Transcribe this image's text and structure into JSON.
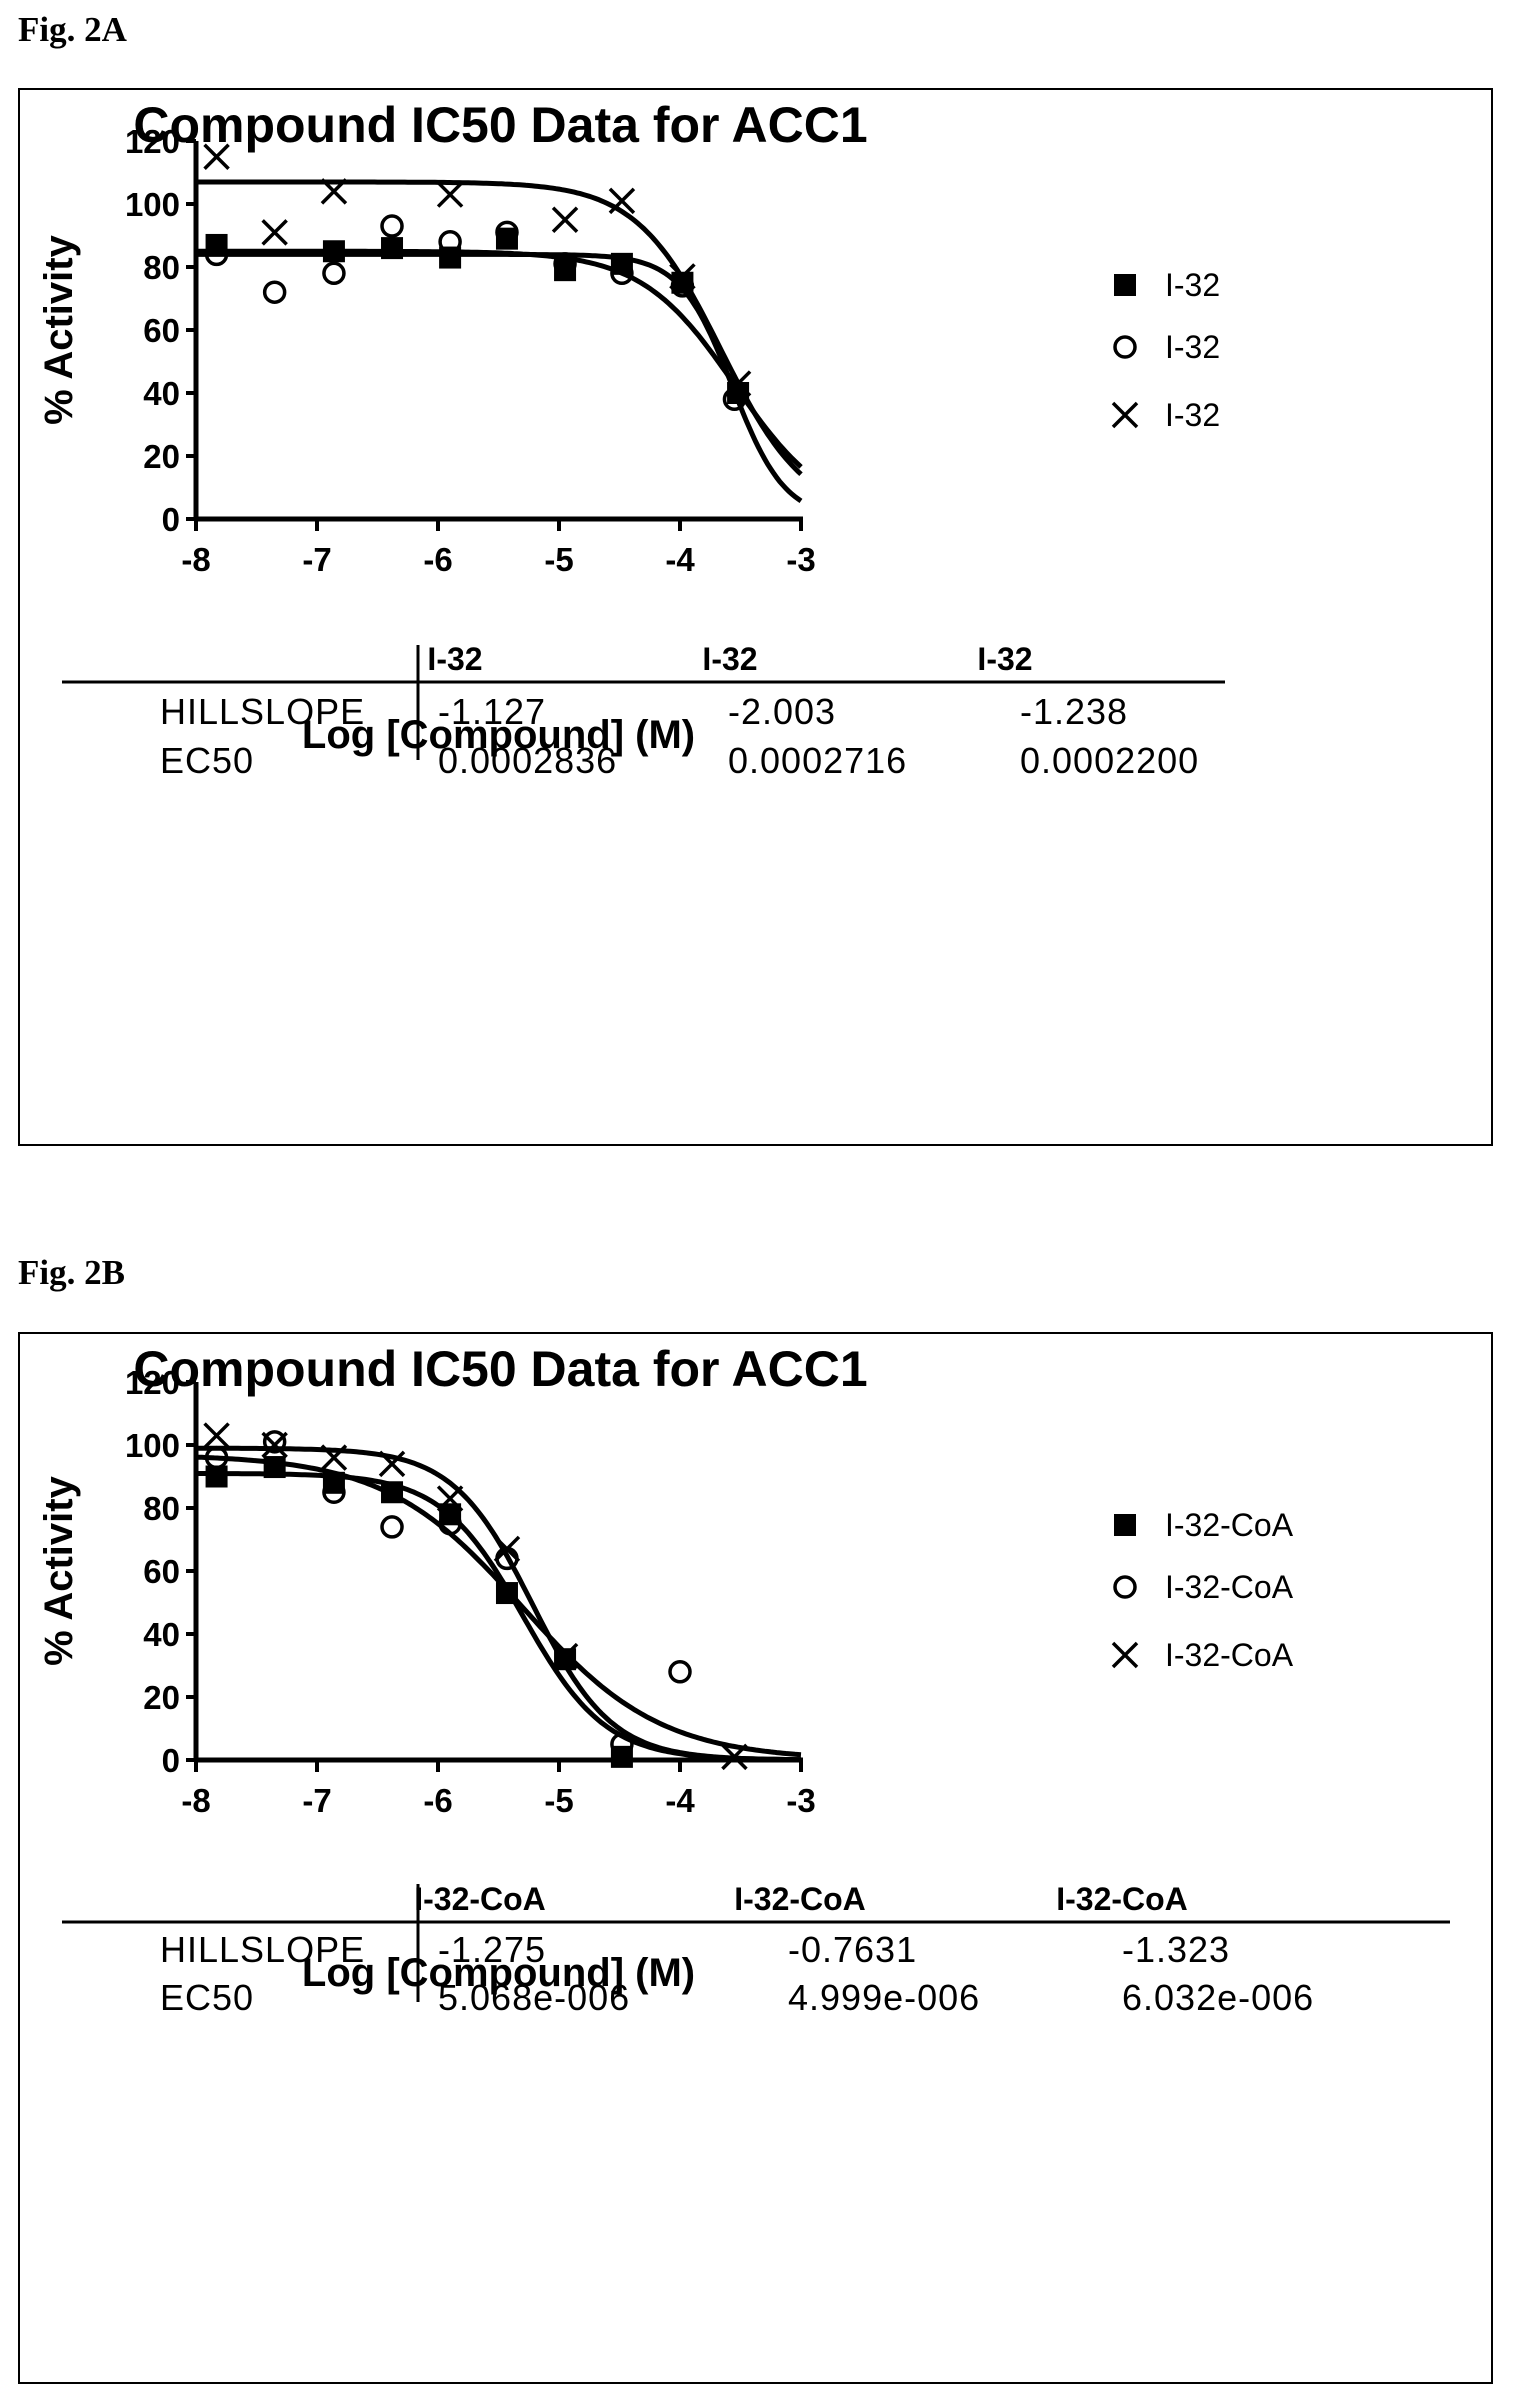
{
  "figure_a_label": "Fig. 2A",
  "figure_b_label": "Fig. 2B",
  "chart_data": [
    {
      "type": "scatter",
      "title": "Compound IC50 Data for ACC1",
      "xlabel": "Log [Compound] (M)",
      "ylabel": "% Activity",
      "xlim": [
        -8,
        -3
      ],
      "ylim": [
        0,
        120
      ],
      "xticks": [
        -8,
        -7,
        -6,
        -5,
        -4,
        -3
      ],
      "yticks": [
        0,
        20,
        40,
        60,
        80,
        100,
        120
      ],
      "legend_position": "right",
      "series": [
        {
          "name": "I-32",
          "marker": "filled-square",
          "points": [
            [
              -7.83,
              87
            ],
            [
              -6.86,
              85
            ],
            [
              -6.38,
              86
            ],
            [
              -5.9,
              83
            ],
            [
              -5.43,
              89
            ],
            [
              -4.95,
              79
            ],
            [
              -4.48,
              81
            ],
            [
              -3.98,
              75
            ],
            [
              -3.52,
              40
            ]
          ],
          "fit": {
            "top": 85,
            "bottom": 0,
            "log_ec50": -3.547,
            "hill": 1.127
          }
        },
        {
          "name": "I-32",
          "marker": "open-circle",
          "points": [
            [
              -7.83,
              84
            ],
            [
              -7.35,
              72
            ],
            [
              -6.86,
              78
            ],
            [
              -6.38,
              93
            ],
            [
              -5.9,
              88
            ],
            [
              -5.43,
              91
            ],
            [
              -4.95,
              81
            ],
            [
              -4.48,
              78
            ],
            [
              -3.98,
              74
            ],
            [
              -3.55,
              38
            ]
          ],
          "fit": {
            "top": 84,
            "bottom": 0,
            "log_ec50": -3.566,
            "hill": 2.003
          }
        },
        {
          "name": "I-32",
          "marker": "x",
          "points": [
            [
              -7.83,
              115
            ],
            [
              -7.35,
              91
            ],
            [
              -6.86,
              104
            ],
            [
              -5.9,
              103
            ],
            [
              -4.95,
              95
            ],
            [
              -4.48,
              101
            ],
            [
              -3.98,
              77
            ],
            [
              -3.52,
              43
            ]
          ],
          "fit": {
            "top": 107,
            "bottom": 0,
            "log_ec50": -3.658,
            "hill": 1.238
          }
        }
      ],
      "table": {
        "headers": [
          "I-32",
          "I-32",
          "I-32"
        ],
        "rows": [
          {
            "label": "HILLSLOPE",
            "values": [
              "-1.127",
              "-2.003",
              "-1.238"
            ]
          },
          {
            "label": "EC50",
            "values": [
              "0.0002836",
              "0.0002716",
              "0.0002200"
            ]
          }
        ]
      }
    },
    {
      "type": "scatter",
      "title": "Compound IC50 Data for ACC1",
      "xlabel": "Log [Compound] (M)",
      "ylabel": "% Activity",
      "xlim": [
        -8,
        -3
      ],
      "ylim": [
        0,
        120
      ],
      "xticks": [
        -8,
        -7,
        -6,
        -5,
        -4,
        -3
      ],
      "yticks": [
        0,
        20,
        40,
        60,
        80,
        100,
        120
      ],
      "legend_position": "right",
      "series": [
        {
          "name": "I-32-CoA",
          "marker": "filled-square",
          "points": [
            [
              -7.83,
              90
            ],
            [
              -7.35,
              93
            ],
            [
              -6.86,
              88
            ],
            [
              -6.38,
              85
            ],
            [
              -5.9,
              78
            ],
            [
              -5.43,
              53
            ],
            [
              -4.95,
              32
            ],
            [
              -4.48,
              1
            ]
          ],
          "fit": {
            "top": 91,
            "bottom": 0,
            "log_ec50": -5.295,
            "hill": 1.275
          }
        },
        {
          "name": "I-32-CoA",
          "marker": "open-circle",
          "points": [
            [
              -7.83,
              96
            ],
            [
              -7.35,
              101
            ],
            [
              -6.86,
              85
            ],
            [
              -6.38,
              74
            ],
            [
              -5.9,
              75
            ],
            [
              -5.43,
              64
            ],
            [
              -4.48,
              5
            ],
            [
              -4.0,
              28
            ]
          ],
          "fit": {
            "top": 97,
            "bottom": 0,
            "log_ec50": -5.301,
            "hill": 0.7631
          }
        },
        {
          "name": "I-32-CoA",
          "marker": "x",
          "points": [
            [
              -7.83,
              103
            ],
            [
              -7.35,
              100
            ],
            [
              -6.86,
              96
            ],
            [
              -6.38,
              94
            ],
            [
              -5.9,
              83
            ],
            [
              -5.43,
              67
            ],
            [
              -4.95,
              33
            ],
            [
              -3.55,
              1
            ]
          ],
          "fit": {
            "top": 99,
            "bottom": 0,
            "log_ec50": -5.22,
            "hill": 1.323
          }
        }
      ],
      "table": {
        "headers": [
          "I-32-CoA",
          "I-32-CoA",
          "I-32-CoA"
        ],
        "rows": [
          {
            "label": "HILLSLOPE",
            "values": [
              "-1.275",
              "-0.7631",
              "-1.323"
            ]
          },
          {
            "label": "EC50",
            "values": [
              "5.068e-006",
              "4.999e-006",
              "6.032e-006"
            ]
          }
        ]
      }
    }
  ]
}
